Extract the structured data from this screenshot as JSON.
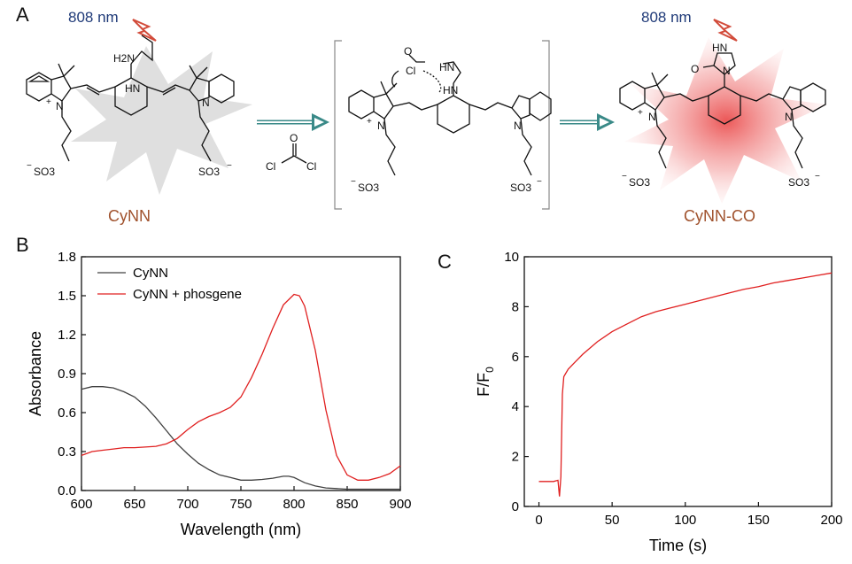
{
  "panels": {
    "a": "A",
    "b": "B",
    "c": "C"
  },
  "scheme": {
    "excitation_label": "808 nm",
    "reactant_name": "CyNN",
    "product_name": "CyNN-CO",
    "reagent_atoms": {
      "o": "O",
      "cl": "Cl"
    },
    "atoms": {
      "h2n": "H2N",
      "hn": "HN",
      "nh": "HN",
      "n": "N",
      "n_plus": "N",
      "plus": "+",
      "so3": "SO3",
      "neg": "−",
      "cl": "Cl",
      "o": "O"
    }
  },
  "colors": {
    "cynn": "#404040",
    "cynn_phosgene": "#e02020",
    "time_trace": "#e02020",
    "label_blue": "#1f3a78",
    "name_brown": "#a0522d"
  },
  "chart_data": [
    {
      "type": "line",
      "panel": "B",
      "title": "",
      "xlabel": "Wavelength (nm)",
      "ylabel": "Absorbance",
      "xlim": [
        600,
        900
      ],
      "ylim": [
        0,
        1.8
      ],
      "xticks": [
        600,
        650,
        700,
        750,
        800,
        850,
        900
      ],
      "yticks": [
        0.0,
        0.3,
        0.6,
        0.9,
        1.2,
        1.5,
        1.8
      ],
      "ytick_labels": [
        "0.0",
        "0.3",
        "0.6",
        "0.9",
        "1.2",
        "1.5",
        "1.8"
      ],
      "legend_position": "top-left",
      "series": [
        {
          "name": "CyNN",
          "color": "#404040",
          "x": [
            600,
            610,
            620,
            630,
            640,
            650,
            660,
            670,
            680,
            690,
            700,
            710,
            720,
            730,
            740,
            750,
            760,
            770,
            780,
            790,
            795,
            800,
            810,
            820,
            830,
            840,
            850,
            860,
            870,
            880,
            890,
            900
          ],
          "y": [
            0.78,
            0.8,
            0.8,
            0.79,
            0.76,
            0.72,
            0.65,
            0.56,
            0.46,
            0.36,
            0.28,
            0.21,
            0.16,
            0.12,
            0.1,
            0.08,
            0.08,
            0.085,
            0.095,
            0.11,
            0.11,
            0.1,
            0.06,
            0.035,
            0.02,
            0.015,
            0.01,
            0.01,
            0.01,
            0.01,
            0.01,
            0.01
          ]
        },
        {
          "name": "CyNN + phosgene",
          "color": "#e02020",
          "x": [
            600,
            610,
            620,
            630,
            640,
            650,
            660,
            670,
            680,
            690,
            700,
            710,
            720,
            730,
            740,
            750,
            760,
            770,
            780,
            790,
            800,
            805,
            810,
            820,
            830,
            840,
            850,
            860,
            870,
            880,
            890,
            900
          ],
          "y": [
            0.27,
            0.3,
            0.31,
            0.32,
            0.33,
            0.33,
            0.335,
            0.34,
            0.36,
            0.4,
            0.47,
            0.53,
            0.57,
            0.6,
            0.64,
            0.72,
            0.87,
            1.05,
            1.25,
            1.43,
            1.51,
            1.5,
            1.42,
            1.08,
            0.62,
            0.27,
            0.12,
            0.08,
            0.08,
            0.1,
            0.13,
            0.19
          ]
        }
      ]
    },
    {
      "type": "line",
      "panel": "C",
      "title": "",
      "xlabel": "Time (s)",
      "ylabel": "F/F0",
      "ylabel_main": "F/F",
      "ylabel_sub": "0",
      "xlim": [
        -10,
        200
      ],
      "ylim": [
        0,
        10
      ],
      "xticks": [
        0,
        50,
        100,
        150,
        200
      ],
      "yticks": [
        0,
        2,
        4,
        6,
        8,
        10
      ],
      "series": [
        {
          "name": "",
          "color": "#e02020",
          "x": [
            0,
            5,
            10,
            13,
            14,
            15,
            16,
            17,
            18,
            20,
            25,
            30,
            40,
            50,
            60,
            70,
            80,
            90,
            100,
            110,
            120,
            130,
            140,
            150,
            160,
            170,
            180,
            190,
            200
          ],
          "y": [
            1.0,
            1.0,
            1.0,
            1.05,
            0.4,
            1.2,
            4.5,
            5.2,
            5.3,
            5.5,
            5.8,
            6.1,
            6.6,
            7.0,
            7.3,
            7.6,
            7.8,
            7.95,
            8.1,
            8.25,
            8.4,
            8.55,
            8.7,
            8.8,
            8.95,
            9.05,
            9.15,
            9.25,
            9.35
          ]
        }
      ]
    }
  ]
}
